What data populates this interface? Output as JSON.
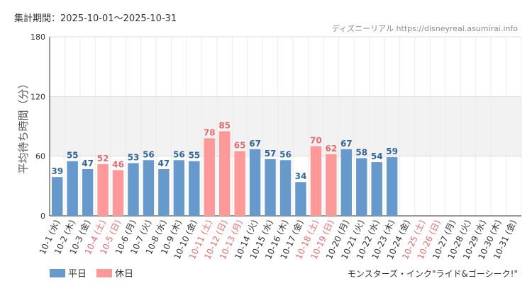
{
  "period_label": "集計期間：2025-10-01〜2025-10-31",
  "source_label": "ディズニーリアル https://disneyreal.asumirai.info",
  "attraction_label": "モンスターズ・インク\"ライド&ゴーシーク!\"",
  "colors": {
    "weekday": "#6699cc",
    "holiday": "#ff9999",
    "weekday_text": "#336699",
    "holiday_text": "#e66b6b",
    "band": "#f2f2f2",
    "grid": "#dddddd"
  },
  "chart_data": {
    "type": "bar",
    "title": "",
    "ylabel": "平均待ち時間（分）",
    "xlabel": "",
    "ylim": [
      0,
      180
    ],
    "yticks": [
      0,
      60,
      120,
      180
    ],
    "shaded_band": [
      60,
      120
    ],
    "legend_position": "bottom-left",
    "legend": [
      {
        "key": "weekday",
        "label": "平日"
      },
      {
        "key": "holiday",
        "label": "休日"
      }
    ],
    "bars": [
      {
        "label": "10-1 (水)",
        "value": 39,
        "type": "weekday"
      },
      {
        "label": "10-2 (木)",
        "value": 55,
        "type": "weekday"
      },
      {
        "label": "10-3 (金)",
        "value": 47,
        "type": "weekday"
      },
      {
        "label": "10-4 (土)",
        "value": 52,
        "type": "holiday"
      },
      {
        "label": "10-5 (日)",
        "value": 46,
        "type": "holiday"
      },
      {
        "label": "10-6 (月)",
        "value": 53,
        "type": "weekday"
      },
      {
        "label": "10-7 (火)",
        "value": 56,
        "type": "weekday"
      },
      {
        "label": "10-8 (水)",
        "value": 47,
        "type": "weekday"
      },
      {
        "label": "10-9 (木)",
        "value": 56,
        "type": "weekday"
      },
      {
        "label": "10-10 (金)",
        "value": 55,
        "type": "weekday"
      },
      {
        "label": "10-11 (土)",
        "value": 78,
        "type": "holiday"
      },
      {
        "label": "10-12 (日)",
        "value": 85,
        "type": "holiday"
      },
      {
        "label": "10-13 (月)",
        "value": 65,
        "type": "holiday"
      },
      {
        "label": "10-14 (火)",
        "value": 67,
        "type": "weekday"
      },
      {
        "label": "10-15 (水)",
        "value": 57,
        "type": "weekday"
      },
      {
        "label": "10-16 (木)",
        "value": 56,
        "type": "weekday"
      },
      {
        "label": "10-17 (金)",
        "value": 34,
        "type": "weekday"
      },
      {
        "label": "10-18 (土)",
        "value": 70,
        "type": "holiday"
      },
      {
        "label": "10-19 (日)",
        "value": 62,
        "type": "holiday"
      },
      {
        "label": "10-20 (月)",
        "value": 67,
        "type": "weekday"
      },
      {
        "label": "10-21 (火)",
        "value": 58,
        "type": "weekday"
      },
      {
        "label": "10-22 (水)",
        "value": 54,
        "type": "weekday"
      },
      {
        "label": "10-23 (木)",
        "value": 59,
        "type": "weekday"
      },
      {
        "label": "10-24 (金)",
        "value": null,
        "type": "weekday"
      },
      {
        "label": "10-25 (土)",
        "value": null,
        "type": "holiday"
      },
      {
        "label": "10-26 (日)",
        "value": null,
        "type": "holiday"
      },
      {
        "label": "10-27 (月)",
        "value": null,
        "type": "weekday"
      },
      {
        "label": "10-28 (火)",
        "value": null,
        "type": "weekday"
      },
      {
        "label": "10-29 (水)",
        "value": null,
        "type": "weekday"
      },
      {
        "label": "10-30 (木)",
        "value": null,
        "type": "weekday"
      },
      {
        "label": "10-31 (金)",
        "value": null,
        "type": "weekday"
      }
    ]
  }
}
